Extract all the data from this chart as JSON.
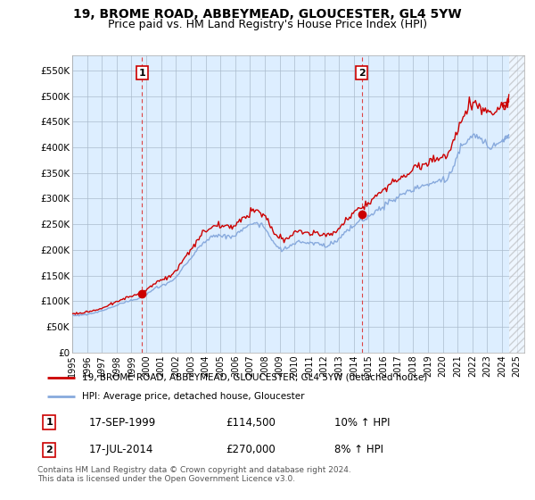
{
  "title": "19, BROME ROAD, ABBEYMEAD, GLOUCESTER, GL4 5YW",
  "subtitle": "Price paid vs. HM Land Registry's House Price Index (HPI)",
  "title_fontsize": 10,
  "subtitle_fontsize": 9,
  "ylabel_ticks": [
    "£0",
    "£50K",
    "£100K",
    "£150K",
    "£200K",
    "£250K",
    "£300K",
    "£350K",
    "£400K",
    "£450K",
    "£500K",
    "£550K"
  ],
  "ytick_values": [
    0,
    50000,
    100000,
    150000,
    200000,
    250000,
    300000,
    350000,
    400000,
    450000,
    500000,
    550000
  ],
  "ylim": [
    0,
    580000
  ],
  "xmin_year": 1995.0,
  "xmax_year": 2025.5,
  "xticks": [
    1995,
    1996,
    1997,
    1998,
    1999,
    2000,
    2001,
    2002,
    2003,
    2004,
    2005,
    2006,
    2007,
    2008,
    2009,
    2010,
    2011,
    2012,
    2013,
    2014,
    2015,
    2016,
    2017,
    2018,
    2019,
    2020,
    2021,
    2022,
    2023,
    2024,
    2025
  ],
  "background_color": "#ffffff",
  "plot_bg_color": "#ddeeff",
  "grid_color": "#aabbcc",
  "sale1_x": 1999.72,
  "sale1_y": 114500,
  "sale1_label": "1",
  "sale1_date": "17-SEP-1999",
  "sale1_price": "£114,500",
  "sale1_hpi": "10% ↑ HPI",
  "sale2_x": 2014.54,
  "sale2_y": 270000,
  "sale2_label": "2",
  "sale2_date": "17-JUL-2014",
  "sale2_price": "£270,000",
  "sale2_hpi": "8% ↑ HPI",
  "vline_color": "#dd4444",
  "sale_dot_color": "#cc0000",
  "price_line_color": "#cc0000",
  "hpi_line_color": "#88aadd",
  "legend_label_price": "19, BROME ROAD, ABBEYMEAD, GLOUCESTER, GL4 5YW (detached house)",
  "legend_label_hpi": "HPI: Average price, detached house, Gloucester",
  "footer": "Contains HM Land Registry data © Crown copyright and database right 2024.\nThis data is licensed under the Open Government Licence v3.0."
}
